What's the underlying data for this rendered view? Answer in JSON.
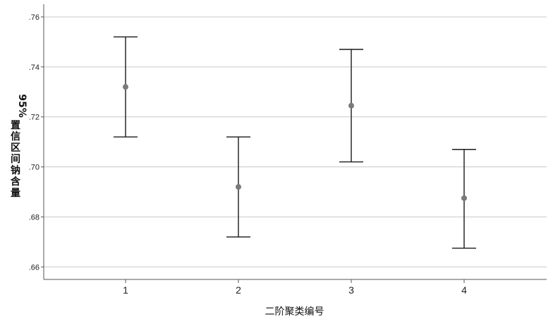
{
  "chart_data": {
    "type": "errorbar",
    "title": "",
    "xlabel": "二阶聚类编号",
    "ylabel_chars": [
      "95%",
      "置",
      "信",
      "区",
      "间",
      "钠",
      "含",
      "量"
    ],
    "categories": [
      "1",
      "2",
      "3",
      "4"
    ],
    "series": [
      {
        "means": [
          0.732,
          0.692,
          0.7245,
          0.6875
        ],
        "lower": [
          0.712,
          0.672,
          0.702,
          0.6675
        ],
        "upper": [
          0.752,
          0.712,
          0.747,
          0.707
        ]
      }
    ],
    "ylim": [
      0.655,
      0.7645
    ],
    "yticks": [
      0.66,
      0.68,
      0.7,
      0.72,
      0.74,
      0.76
    ],
    "ytick_labels": [
      ".66",
      ".68",
      ".70",
      ".72",
      ".74",
      ".76"
    ],
    "grid": true,
    "legend": "none",
    "colors": {
      "marker": "#7a7a7a",
      "errorbar": "#1a1a1a",
      "grid": "#c8c8c8",
      "axis": "#555555"
    }
  }
}
